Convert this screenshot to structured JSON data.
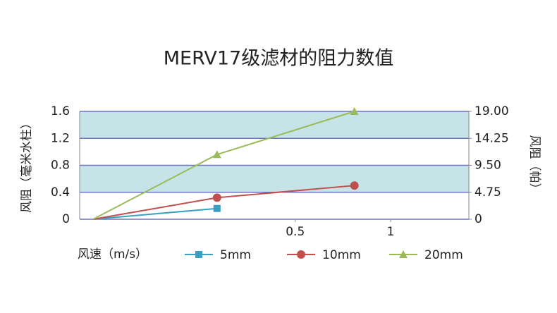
{
  "chart_data": {
    "type": "line",
    "title": "MERV17级滤材的阻力数值",
    "y_label": "风阻（毫米水柱）",
    "y2_label": "风阻（帕）",
    "x_label": "风速（m/s）",
    "x": [
      -0.56,
      0.09,
      0.81
    ],
    "xlim": [
      -0.63,
      1.41
    ],
    "xticks": [
      0.5,
      1
    ],
    "ylim": [
      0,
      1.6
    ],
    "yticks": [
      0,
      0.4,
      0.8,
      1.2,
      1.6
    ],
    "y2lim": [
      0,
      19
    ],
    "y2ticks": [
      0,
      4.75,
      {
        "value": 9.5,
        "label": "9.50"
      },
      14.25,
      {
        "value": 19,
        "label": "19.00"
      }
    ],
    "grid": true,
    "band_color": "#c6e4e8",
    "grid_color": "#6f74c0",
    "series": [
      {
        "name": "5mm",
        "color": "#3a9fc0",
        "marker": "square",
        "values": [
          0,
          0.16,
          null
        ]
      },
      {
        "name": "10mm",
        "color": "#c0504d",
        "marker": "circle",
        "values": [
          0,
          0.32,
          0.5
        ]
      },
      {
        "name": "20mm",
        "color": "#9bbb59",
        "marker": "triangle",
        "values": [
          0,
          0.96,
          1.6
        ]
      }
    ]
  }
}
